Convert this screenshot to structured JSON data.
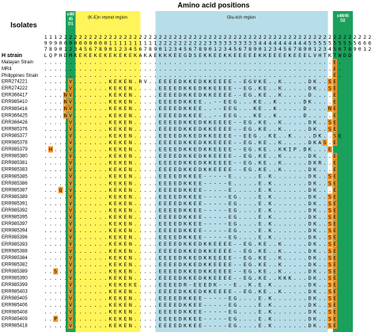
{
  "header": {
    "title": "Amino acid positions",
    "isolates_label": "Isolates",
    "d1_label": [
      "s48/",
      "45",
      "D1"
    ],
    "repeat_label": "(K-E)n repeat region",
    "glu_label": "Glu-rich region",
    "d2_label": [
      "s48/45",
      "D2"
    ]
  },
  "positions": [
    "111222222222222222222222222222222222222222222222222222222222222222",
    "999000000000011111111112222222222333333333344444444445555555555666",
    "789012345678901234567890123456789012345678901234567890123456789012"
  ],
  "rows": [
    {
      "name": "H strain",
      "seq": "LQPHDMKEKEKEKEKEKEKAKAEKKKEEGDSEKKEEKKEEEEEKKEEEEKEEELVHTKTWDD"
    },
    {
      "name": "Malayan Strain",
      "seq": "..........................................................E."
    },
    {
      "name": "MR4",
      "seq": "..........................................................E."
    },
    {
      "name": "Philippines Strain",
      "seq": "..........................................................E."
    },
    {
      "name": "ERR274221",
      "seq": ".....V.......KEKEN.RV..EEEEDKKEDKKEEEE--EGVKE..K.....DK..SE"
    },
    {
      "name": "ERR274222",
      "seq": ".....V.......KEKEN.....EEEEDKKEDKKEEEE--EG.KE..K.....DK..SE"
    },
    {
      "name": "ERR366417",
      "seq": "....NV.......KEKEN.....EEEEDKKEDKKEEEE--EG.KE..K.....D....E"
    },
    {
      "name": "ERR985410",
      "seq": "....NV.......KEKEN.....EEEEDKKEE..--EEG...KE..K.....DK....E"
    },
    {
      "name": "ERR985416",
      "seq": "....NV.......KEKEN.....EEEEDKKEE..--EEG...KE..K.....D....NE"
    },
    {
      "name": "ERR366425",
      "seq": "....NV.......KEKEN.....EEEEDKKEE..--EEG...KE..K.....D.....E"
    },
    {
      "name": "ERR366426",
      "seq": ".....V.......KEKEN.....EEEEDKKEDKKEEEE--EG.KE..K.....DK..SE"
    },
    {
      "name": "ERR985376",
      "seq": ".....V.......KEKEN.....EEEEDKKEDKKEEEE--EG.KE..K.....DK..SE"
    },
    {
      "name": "ERR985377",
      "seq": ".....V.......KEKEN.....EEEEDKKEDKKEEEE--EEG..KE..K....DK..SE"
    },
    {
      "name": "ERR985378",
      "seq": ".....V.......KEKEN.....EEEEDKKEDKKEEEE--EG.KE..K.....DKAS.E"
    },
    {
      "name": "ERR985379",
      "seq": ".H...V.......KEKEN.....EEEEDKKEDKKEEEE--EG.KE..KKIP.DK...E"
    },
    {
      "name": "ERR985380",
      "seq": ".....V.......KEKEN.....EEEEDKKEDKKEEEE--EG.KE..K.....DK...E"
    },
    {
      "name": "ERR985381",
      "seq": ".....V.......KEKEN.....EEEEDKKEDKKEEEE--EG.KE..K.....DKR..E"
    },
    {
      "name": "ERR985383",
      "seq": ".....V.......KEKEN.....EEEEDKKEDKKEEEE--EG.KE..K.....DK...E"
    },
    {
      "name": "ERR985385",
      "seq": ".....V.......KEKEN.....EEEEDKKEE-----E.....E.K.......DK..SE"
    },
    {
      "name": "ERR985386",
      "seq": ".....V.......KEKEN.....EEEEDKKEE-----E.....E.K.......DK..SE"
    },
    {
      "name": "ERR985387",
      "seq": "...Q.V.......KEKEN.....EEEEDKKEE-----E.....E.K.......DK...E"
    },
    {
      "name": "ERR985389",
      "seq": ".....V.......KEKEN.....EEEEDKKEE-----EG....E.K.......DK..SE"
    },
    {
      "name": "ERR985391",
      "seq": ".....V.......KEKEN.....EEEEDKKEE-----EG....E.K.......DK..SE"
    },
    {
      "name": "ERR985392",
      "seq": ".....V.......KEKEN.....EEEEDKKEE-----EG....E.K.......DK..SE"
    },
    {
      "name": "ERR985395",
      "seq": ".....V.......KEKEN.....EEEEDKKEE-----EG....E.K.......DK..SE"
    },
    {
      "name": "ERR985397",
      "seq": ".....V.......KEKEN.....EEEEDKKEE-----EG....E.K.......DK..SE"
    },
    {
      "name": "ERR985394",
      "seq": ".....V.......KEKEN.....EEEEDKKEE-----EG....E.K.......DK..SE"
    },
    {
      "name": "ERR985396",
      "seq": ".....V.......KEKEN.....EEEEDKKEE-----EG....E.K.......DK..SE"
    },
    {
      "name": "ERR985393",
      "seq": ".....V.......KEKEN.....EEEEDKKEDKKEEEE--EG.KE..K.....DK..SE"
    },
    {
      "name": "ERR985388",
      "seq": ".....V.......KEKEN.....EEEEDKKEDKKEEEE--EG.KE..K.....DK..SE"
    },
    {
      "name": "ERR985384",
      "seq": ".....V.......KEKEN.....EEEEDKKEDKKEEEE--EG.KE..K.....DK..SE"
    },
    {
      "name": "ERR985382",
      "seq": ".....V.......KEKEN.....EEEEDKKEDKKEEEE--EG.KE..K.....DK..SE"
    },
    {
      "name": "ERR985389",
      "seq": "..S..V.......KEKEN.....EEEEDKKEDKKEEEE--EG.KE..K.....DK..SE"
    },
    {
      "name": "ERR985390",
      "seq": ".....V.......KEKEN.....EEEEDKKEDKKEEEE--EG.KE..KKK...DK..SE"
    },
    {
      "name": "ERR985399",
      "seq": ".....V.......KEKEKE....EEEEDR-EEEDK---E..K.E.K.......DK..SE"
    },
    {
      "name": "ERR985403",
      "seq": ".....V.......KEKEN.....EEEEDKKEDKKEEEE--EG.KE..K.....DK..SE"
    },
    {
      "name": "ERR985405",
      "seq": ".....V.......KEKEN.....EEEEDKKEE-----EG....E.K.......DK..SE"
    },
    {
      "name": "ERR985406",
      "seq": ".....V.......KEKEN.....EEEEDKKEE-----EG....E.K.......DK..SE"
    },
    {
      "name": "ERR985408",
      "seq": ".....V.......KEKEN.....EEEEDKKEE-----EG....E.K.......DK..SE"
    },
    {
      "name": "ERR985409",
      "seq": "..P..V.......KEKEN.....EEEEDKKEE-----EG....E.K.......DK..SE"
    },
    {
      "name": "ERR985418",
      "seq": ".....V.......KEKEN.....EEEEDKKEE-----EG....E.K.......DK..SE"
    }
  ]
}
